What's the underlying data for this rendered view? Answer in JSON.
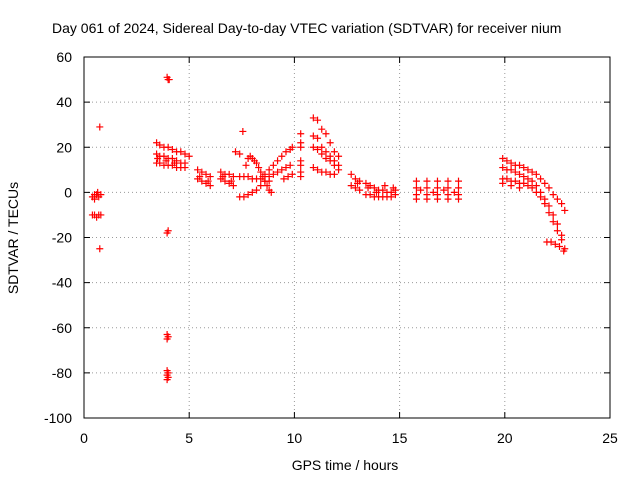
{
  "chart_data": {
    "type": "scatter",
    "title": "Day 061 of 2024, Sidereal Day-to-day VTEC variation (SDTVAR) for receiver nium",
    "xlabel": "GPS time / hours",
    "ylabel": "SDTVAR / TECUs",
    "xlim": [
      0,
      25
    ],
    "ylim": [
      -100,
      60
    ],
    "xticks": [
      0,
      5,
      10,
      15,
      20,
      25
    ],
    "yticks": [
      -100,
      -80,
      -60,
      -40,
      -20,
      0,
      20,
      40,
      60
    ],
    "grid": true,
    "marker": "+",
    "marker_color": "#ff0000",
    "legend": "none",
    "series": [
      {
        "name": "SDTVAR",
        "points": [
          [
            0.4,
            -2
          ],
          [
            0.5,
            -1
          ],
          [
            0.6,
            -1
          ],
          [
            0.7,
            -2
          ],
          [
            0.8,
            -1
          ],
          [
            0.5,
            -3
          ],
          [
            0.65,
            0
          ],
          [
            0.4,
            -10
          ],
          [
            0.5,
            -10
          ],
          [
            0.6,
            -11
          ],
          [
            0.7,
            -10
          ],
          [
            0.8,
            -10
          ],
          [
            0.75,
            29
          ],
          [
            0.75,
            -25
          ],
          [
            3.45,
            22
          ],
          [
            3.6,
            21
          ],
          [
            3.8,
            20
          ],
          [
            4.0,
            20
          ],
          [
            4.2,
            19
          ],
          [
            4.4,
            18
          ],
          [
            4.6,
            18
          ],
          [
            4.8,
            17
          ],
          [
            5.0,
            16
          ],
          [
            3.45,
            17
          ],
          [
            3.6,
            16
          ],
          [
            3.8,
            16
          ],
          [
            4.0,
            15
          ],
          [
            4.2,
            15
          ],
          [
            4.4,
            14
          ],
          [
            4.6,
            13
          ],
          [
            4.8,
            13
          ],
          [
            3.45,
            13
          ],
          [
            3.6,
            13
          ],
          [
            3.8,
            12
          ],
          [
            4.0,
            12
          ],
          [
            4.2,
            12
          ],
          [
            4.4,
            11
          ],
          [
            4.6,
            11
          ],
          [
            4.8,
            11
          ],
          [
            3.5,
            15
          ],
          [
            3.9,
            14
          ],
          [
            4.3,
            13
          ],
          [
            3.95,
            51
          ],
          [
            4.0,
            50
          ],
          [
            4.05,
            50
          ],
          [
            3.95,
            -18
          ],
          [
            4.0,
            -17
          ],
          [
            3.95,
            -63
          ],
          [
            4.0,
            -64
          ],
          [
            3.95,
            -65
          ],
          [
            3.95,
            -79
          ],
          [
            4.0,
            -80
          ],
          [
            3.95,
            -81
          ],
          [
            4.0,
            -82
          ],
          [
            3.95,
            -83
          ],
          [
            5.4,
            10
          ],
          [
            5.6,
            9
          ],
          [
            5.8,
            8
          ],
          [
            6.0,
            7
          ],
          [
            5.4,
            6
          ],
          [
            5.6,
            5
          ],
          [
            5.8,
            4
          ],
          [
            6.0,
            3
          ],
          [
            5.5,
            7
          ],
          [
            5.9,
            5
          ],
          [
            6.5,
            9
          ],
          [
            6.7,
            8
          ],
          [
            6.9,
            8
          ],
          [
            7.1,
            7
          ],
          [
            6.5,
            6
          ],
          [
            6.7,
            5
          ],
          [
            6.9,
            4
          ],
          [
            7.1,
            3
          ],
          [
            6.6,
            7
          ],
          [
            7.0,
            5
          ],
          [
            7.2,
            18
          ],
          [
            7.4,
            17
          ],
          [
            7.55,
            27
          ],
          [
            7.7,
            12
          ],
          [
            7.8,
            15
          ],
          [
            7.9,
            16
          ],
          [
            8.0,
            15
          ],
          [
            8.1,
            14
          ],
          [
            8.2,
            13
          ],
          [
            8.3,
            11
          ],
          [
            8.4,
            9
          ],
          [
            8.5,
            7
          ],
          [
            8.6,
            5
          ],
          [
            8.7,
            3
          ],
          [
            8.8,
            1
          ],
          [
            8.9,
            0
          ],
          [
            7.4,
            -2
          ],
          [
            7.6,
            -2
          ],
          [
            7.8,
            -1
          ],
          [
            8.0,
            0
          ],
          [
            8.2,
            1
          ],
          [
            8.4,
            3
          ],
          [
            8.6,
            5
          ],
          [
            8.8,
            7
          ],
          [
            9.0,
            8
          ],
          [
            9.2,
            9
          ],
          [
            9.4,
            10
          ],
          [
            9.6,
            11
          ],
          [
            9.8,
            12
          ],
          [
            7.4,
            7
          ],
          [
            7.6,
            7
          ],
          [
            7.8,
            7
          ],
          [
            8.0,
            6
          ],
          [
            8.2,
            6
          ],
          [
            8.4,
            6
          ],
          [
            8.6,
            5
          ],
          [
            8.8,
            5
          ],
          [
            8.6,
            8
          ],
          [
            8.8,
            10
          ],
          [
            9.0,
            12
          ],
          [
            9.2,
            14
          ],
          [
            9.4,
            16
          ],
          [
            9.6,
            18
          ],
          [
            9.8,
            19
          ],
          [
            9.9,
            20
          ],
          [
            9.5,
            6
          ],
          [
            9.7,
            7
          ],
          [
            9.9,
            8
          ],
          [
            10.3,
            26
          ],
          [
            10.3,
            22
          ],
          [
            10.3,
            20
          ],
          [
            10.3,
            14
          ],
          [
            10.3,
            12
          ],
          [
            10.3,
            9
          ],
          [
            10.3,
            7
          ],
          [
            10.9,
            33
          ],
          [
            11.1,
            32
          ],
          [
            11.3,
            28
          ],
          [
            11.5,
            26
          ],
          [
            11.7,
            22
          ],
          [
            11.9,
            18
          ],
          [
            12.1,
            16
          ],
          [
            10.9,
            25
          ],
          [
            11.1,
            24
          ],
          [
            11.3,
            20
          ],
          [
            11.5,
            18
          ],
          [
            11.7,
            16
          ],
          [
            11.9,
            14
          ],
          [
            12.1,
            12
          ],
          [
            10.9,
            20
          ],
          [
            11.1,
            19
          ],
          [
            11.3,
            17
          ],
          [
            11.5,
            15
          ],
          [
            11.7,
            14
          ],
          [
            11.9,
            12
          ],
          [
            12.1,
            10
          ],
          [
            10.9,
            11
          ],
          [
            11.1,
            10
          ],
          [
            11.3,
            9
          ],
          [
            11.5,
            9
          ],
          [
            11.7,
            8
          ],
          [
            11.9,
            8
          ],
          [
            12.7,
            8
          ],
          [
            12.9,
            6
          ],
          [
            13.1,
            5
          ],
          [
            12.7,
            3
          ],
          [
            12.9,
            2
          ],
          [
            13.1,
            1
          ],
          [
            13.0,
            4
          ],
          [
            13.4,
            4
          ],
          [
            13.6,
            3
          ],
          [
            13.8,
            2
          ],
          [
            14.0,
            1
          ],
          [
            14.2,
            1
          ],
          [
            14.4,
            0
          ],
          [
            14.6,
            0
          ],
          [
            14.8,
            1
          ],
          [
            13.4,
            -1
          ],
          [
            13.6,
            -1
          ],
          [
            13.8,
            -2
          ],
          [
            14.0,
            -2
          ],
          [
            14.2,
            -2
          ],
          [
            14.4,
            -2
          ],
          [
            14.6,
            -2
          ],
          [
            14.8,
            -1
          ],
          [
            13.5,
            2
          ],
          [
            13.9,
            0
          ],
          [
            14.3,
            3
          ],
          [
            14.7,
            2
          ],
          [
            15.8,
            5
          ],
          [
            15.8,
            2
          ],
          [
            15.8,
            -1
          ],
          [
            15.8,
            -3
          ],
          [
            16.3,
            5
          ],
          [
            16.3,
            2
          ],
          [
            16.3,
            -1
          ],
          [
            16.3,
            -3
          ],
          [
            16.8,
            5
          ],
          [
            16.8,
            2
          ],
          [
            16.8,
            -1
          ],
          [
            16.8,
            -3
          ],
          [
            17.3,
            5
          ],
          [
            17.3,
            2
          ],
          [
            17.3,
            -1
          ],
          [
            17.3,
            -3
          ],
          [
            17.8,
            5
          ],
          [
            17.8,
            2
          ],
          [
            17.8,
            -1
          ],
          [
            17.8,
            -3
          ],
          [
            16.0,
            1
          ],
          [
            16.6,
            0
          ],
          [
            17.1,
            1
          ],
          [
            17.6,
            0
          ],
          [
            19.9,
            15
          ],
          [
            20.1,
            14
          ],
          [
            20.3,
            13
          ],
          [
            20.5,
            12
          ],
          [
            20.7,
            12
          ],
          [
            20.9,
            11
          ],
          [
            21.1,
            10
          ],
          [
            21.3,
            9
          ],
          [
            21.5,
            8
          ],
          [
            21.7,
            6
          ],
          [
            21.9,
            4
          ],
          [
            22.1,
            2
          ],
          [
            22.3,
            -1
          ],
          [
            22.5,
            -3
          ],
          [
            22.7,
            -5
          ],
          [
            22.85,
            -8
          ],
          [
            19.9,
            11
          ],
          [
            20.1,
            10
          ],
          [
            20.3,
            10
          ],
          [
            20.5,
            9
          ],
          [
            20.7,
            8
          ],
          [
            20.9,
            7
          ],
          [
            21.1,
            6
          ],
          [
            21.3,
            5
          ],
          [
            21.5,
            3
          ],
          [
            21.7,
            0
          ],
          [
            21.9,
            -3
          ],
          [
            22.1,
            -6
          ],
          [
            22.3,
            -10
          ],
          [
            22.5,
            -14
          ],
          [
            22.7,
            -19
          ],
          [
            22.85,
            -25
          ],
          [
            19.9,
            6
          ],
          [
            20.1,
            6
          ],
          [
            20.3,
            5
          ],
          [
            20.5,
            5
          ],
          [
            20.7,
            4
          ],
          [
            20.9,
            4
          ],
          [
            21.1,
            3
          ],
          [
            21.3,
            2
          ],
          [
            21.5,
            0
          ],
          [
            21.7,
            -2
          ],
          [
            21.9,
            -5
          ],
          [
            22.1,
            -9
          ],
          [
            22.3,
            -13
          ],
          [
            22.5,
            -17
          ],
          [
            22.7,
            -21
          ],
          [
            19.9,
            4
          ],
          [
            20.3,
            3
          ],
          [
            20.7,
            2
          ],
          [
            22.0,
            -22
          ],
          [
            22.2,
            -22
          ],
          [
            22.4,
            -23
          ],
          [
            22.6,
            -24
          ],
          [
            22.8,
            -26
          ]
        ]
      }
    ]
  }
}
